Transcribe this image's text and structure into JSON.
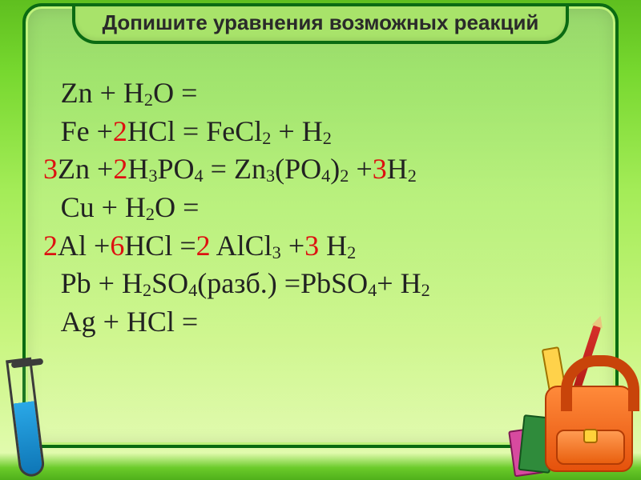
{
  "colors": {
    "frame_border": "#0a6b12",
    "pill_bg": "#a8e36a",
    "text": "#222222",
    "coeff": "#dd1111",
    "bg_top": "#5fbf1f",
    "bg_bottom": "#e7fcb8",
    "bag": "#e5520c",
    "ruler": "#ffd24a",
    "tube_liquid": "#2aa8e7"
  },
  "title": "Допишите уравнения возможных реакций",
  "equations": [
    {
      "lead": "",
      "r1": "Zn",
      "plus1": " + ",
      "c1": "",
      "r2": "H",
      "r2sub": "2",
      "r2b": "O",
      "eq": " =",
      "rhs_blank": true
    },
    {
      "lead": "",
      "r1": "Fe",
      "plus1": " +",
      "c1": "2",
      "r2": "HCl",
      "eq": " = ",
      "p1": "  FeCl",
      "p1sub": "2",
      "plus2": " + H",
      "p2sub": "2"
    },
    {
      "lead_c": "3",
      "r1": "Zn",
      "plus1": " +",
      "c1": "2",
      "r2": "H",
      "r2sub": "3",
      "r2b": "PO",
      "r2bsub": "4",
      "eq": " = ",
      "p1": "Zn",
      "p1sub": "3",
      "p1b": "(PO",
      "p1bsub": "4",
      "p1c": ")",
      "p1csub": "2",
      "plus2": "  +",
      "c2": "3",
      "p2": "H",
      "p2sub": "2"
    },
    {
      "lead": "",
      "r1": "Cu",
      "plus1": " + ",
      "r2": "H",
      "r2sub": "2",
      "r2b": "O",
      "eq": " =",
      "rhs_blank": true
    },
    {
      "lead_c": "2",
      "r1": "Al",
      "plus1": " +",
      "c1": "6",
      "r2": "HCl",
      "eq": " =",
      "c2": "2",
      "p1": " AlCl",
      "p1sub": "3",
      "plus2": "  +",
      "c3": "3",
      "p2": " H",
      "p2sub": "2"
    },
    {
      "lead": "",
      "r1": "Pb",
      "plus1": " + ",
      "r2": "H",
      "r2sub": "2",
      "r2b": "SO",
      "r2bsub": "4",
      "tail": "(разб.)",
      "eq": " =",
      "p1": "PbSO",
      "p1sub": "4",
      "plus2": "+ H",
      "p2sub": "2"
    },
    {
      "lead": "",
      "r1": "Ag",
      "plus1": " + ",
      "r2": "HCl",
      "eq": " =",
      "rhs_blank": true
    }
  ]
}
